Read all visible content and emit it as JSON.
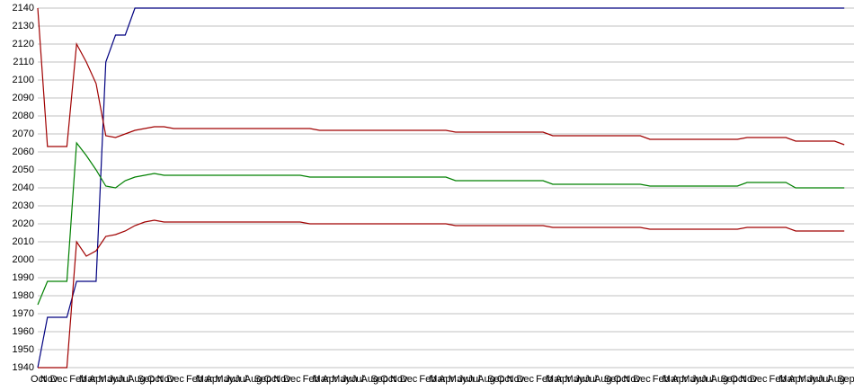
{
  "chart_data": {
    "type": "line",
    "categories": [
      "Oct",
      "Nov",
      "Dec",
      null,
      "Feb",
      "Mar",
      "Apr",
      "May",
      "Jun",
      "Jul",
      "Aug",
      "Sep",
      "Oct",
      "Nov",
      "Dec",
      null,
      "Feb",
      "Mar",
      "Apr",
      "May",
      "Jun",
      "Jul",
      "Aug",
      "Sep",
      "Oct",
      "Nov",
      "Dec",
      null,
      "Feb",
      "Mar",
      "Apr",
      "May",
      "Jun",
      "Jul",
      "Aug",
      "Sep",
      "Oct",
      "Nov",
      "Dec",
      null,
      "Feb",
      "Mar",
      "Apr",
      "May",
      "Jun",
      "Jul",
      "Aug",
      "Sep",
      "Oct",
      "Nov",
      "Dec",
      null,
      "Feb",
      "Mar",
      "Apr",
      "May",
      "Jun",
      "Jul",
      "Aug",
      "Sep",
      "Oct",
      "Nov",
      "Dec",
      null,
      "Feb",
      "Mar",
      "Apr",
      "May",
      "Jun",
      "Jul",
      "Aug",
      "Sep",
      "Oct",
      "Nov",
      "Dec",
      null,
      "Feb",
      "Mar",
      "Apr",
      "May",
      "Jun",
      "Jul",
      "Aug",
      "Sep"
    ],
    "series": [
      {
        "color": "#000080",
        "values": [
          1940,
          1968,
          1968,
          1968,
          1988,
          1988,
          1988,
          2110,
          2125,
          2125,
          2140,
          2140,
          2140,
          2140,
          2140,
          2140,
          2140,
          2140,
          2140,
          2140,
          2140,
          2140,
          2140,
          2140,
          2140,
          2140,
          2140,
          2140,
          2140,
          2140,
          2140,
          2140,
          2140,
          2140,
          2140,
          2140,
          2140,
          2140,
          2140,
          2140,
          2140,
          2140,
          2140,
          2140,
          2140,
          2140,
          2140,
          2140,
          2140,
          2140,
          2140,
          2140,
          2140,
          2140,
          2140,
          2140,
          2140,
          2140,
          2140,
          2140,
          2140,
          2140,
          2140,
          2140,
          2140,
          2140,
          2140,
          2140,
          2140,
          2140,
          2140,
          2140,
          2140,
          2140,
          2140,
          2140,
          2140,
          2140,
          2140,
          2140,
          2140,
          2140,
          2140,
          2140
        ]
      },
      {
        "color": "#a00000",
        "values": [
          2140,
          2063,
          2063,
          2063,
          2120,
          2110,
          2098,
          2069,
          2068,
          2070,
          2072,
          2073,
          2074,
          2074,
          2073,
          2073,
          2073,
          2073,
          2073,
          2073,
          2073,
          2073,
          2073,
          2073,
          2073,
          2073,
          2073,
          2073,
          2073,
          2072,
          2072,
          2072,
          2072,
          2072,
          2072,
          2072,
          2072,
          2072,
          2072,
          2072,
          2072,
          2072,
          2072,
          2071,
          2071,
          2071,
          2071,
          2071,
          2071,
          2071,
          2071,
          2071,
          2071,
          2069,
          2069,
          2069,
          2069,
          2069,
          2069,
          2069,
          2069,
          2069,
          2069,
          2067,
          2067,
          2067,
          2067,
          2067,
          2067,
          2067,
          2067,
          2067,
          2067,
          2068,
          2068,
          2068,
          2068,
          2068,
          2066,
          2066,
          2066,
          2066,
          2066,
          2064
        ]
      },
      {
        "color": "#008000",
        "values": [
          1975,
          1988,
          1988,
          1988,
          2065,
          2058,
          2050,
          2041,
          2040,
          2044,
          2046,
          2047,
          2048,
          2047,
          2047,
          2047,
          2047,
          2047,
          2047,
          2047,
          2047,
          2047,
          2047,
          2047,
          2047,
          2047,
          2047,
          2047,
          2046,
          2046,
          2046,
          2046,
          2046,
          2046,
          2046,
          2046,
          2046,
          2046,
          2046,
          2046,
          2046,
          2046,
          2046,
          2044,
          2044,
          2044,
          2044,
          2044,
          2044,
          2044,
          2044,
          2044,
          2044,
          2042,
          2042,
          2042,
          2042,
          2042,
          2042,
          2042,
          2042,
          2042,
          2042,
          2041,
          2041,
          2041,
          2041,
          2041,
          2041,
          2041,
          2041,
          2041,
          2041,
          2043,
          2043,
          2043,
          2043,
          2043,
          2040,
          2040,
          2040,
          2040,
          2040,
          2040
        ]
      },
      {
        "color": "#a00000",
        "values": [
          1940,
          1940,
          1940,
          1940,
          2010,
          2002,
          2005,
          2013,
          2014,
          2016,
          2019,
          2021,
          2022,
          2021,
          2021,
          2021,
          2021,
          2021,
          2021,
          2021,
          2021,
          2021,
          2021,
          2021,
          2021,
          2021,
          2021,
          2021,
          2020,
          2020,
          2020,
          2020,
          2020,
          2020,
          2020,
          2020,
          2020,
          2020,
          2020,
          2020,
          2020,
          2020,
          2020,
          2019,
          2019,
          2019,
          2019,
          2019,
          2019,
          2019,
          2019,
          2019,
          2019,
          2018,
          2018,
          2018,
          2018,
          2018,
          2018,
          2018,
          2018,
          2018,
          2018,
          2017,
          2017,
          2017,
          2017,
          2017,
          2017,
          2017,
          2017,
          2017,
          2017,
          2018,
          2018,
          2018,
          2018,
          2018,
          2016,
          2016,
          2016,
          2016,
          2016,
          2016
        ]
      }
    ],
    "ylim": [
      1940,
      2140
    ],
    "yticks": [
      1940,
      1950,
      1960,
      1970,
      1980,
      1990,
      2000,
      2010,
      2020,
      2030,
      2040,
      2050,
      2060,
      2070,
      2080,
      2090,
      2100,
      2110,
      2120,
      2130,
      2140
    ],
    "grid": true
  }
}
